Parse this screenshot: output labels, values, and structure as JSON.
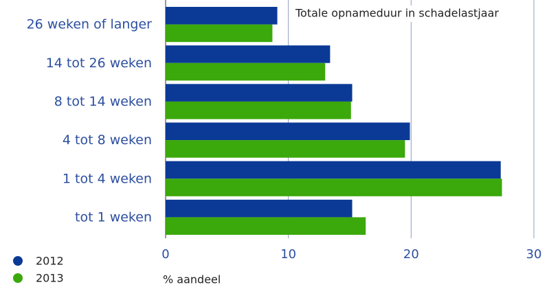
{
  "chart_data": {
    "type": "bar",
    "orientation": "horizontal",
    "title": "Totale opnameduur in schadelastjaar",
    "x_label": "% aandeel",
    "categories": [
      "26 weken of langer",
      "14 tot 26 weken",
      "8 tot 14 weken",
      "4 tot 8 weken",
      "1 tot 4 weken",
      "tot 1 weken"
    ],
    "series": [
      {
        "name": "2012",
        "color": "#0b3a96",
        "values": [
          9.1,
          13.4,
          15.2,
          19.9,
          27.3,
          15.2
        ]
      },
      {
        "name": "2013",
        "color": "#3ba80b",
        "values": [
          8.7,
          13.0,
          15.1,
          19.5,
          27.4,
          16.3
        ]
      }
    ],
    "xlim": [
      0,
      30
    ],
    "xticks": [
      0,
      10,
      20,
      30
    ],
    "grid": true
  }
}
